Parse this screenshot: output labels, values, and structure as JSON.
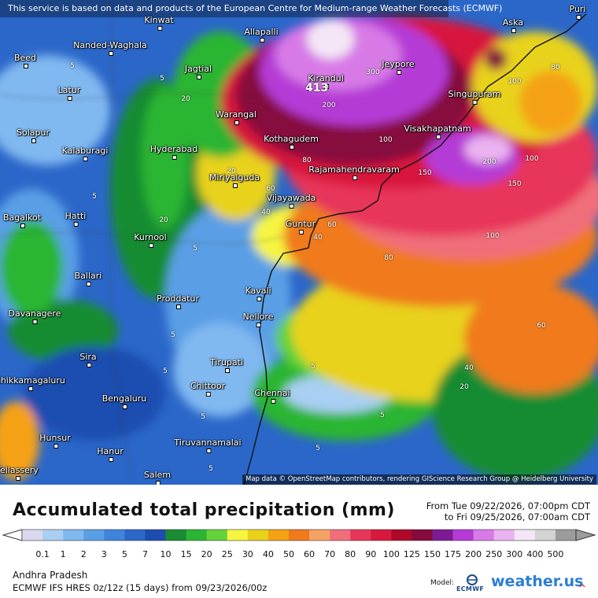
{
  "banner": "This service is based on data and products of the European Centre for Medium-range Weather Forecasts (ECMWF)",
  "map_credit": "Map data © OpenStreetMap contributors, rendering GIScience Research Group @ Heidelberg University",
  "max_value": "413",
  "cities": [
    {
      "name": "Puri"
    },
    {
      "name": "Kinwat"
    },
    {
      "name": "Allapalli"
    },
    {
      "name": "Aska"
    },
    {
      "name": "Nanded-Waghala"
    },
    {
      "name": "Beed"
    },
    {
      "name": "Jagtial"
    },
    {
      "name": "Jeypore"
    },
    {
      "name": "Kirandul"
    },
    {
      "name": "Latur"
    },
    {
      "name": "Singupuram"
    },
    {
      "name": "Warangal"
    },
    {
      "name": "Solapur"
    },
    {
      "name": "Kothagudem"
    },
    {
      "name": "Visakhapatnam"
    },
    {
      "name": "Hyderabad"
    },
    {
      "name": "Kalaburagi"
    },
    {
      "name": "Rajamahendravaram"
    },
    {
      "name": "Miriyalguda"
    },
    {
      "name": "Vijayawada"
    },
    {
      "name": "Bagalkot"
    },
    {
      "name": "Hatti"
    },
    {
      "name": "Guntur"
    },
    {
      "name": "Kurnool"
    },
    {
      "name": "Ballari"
    },
    {
      "name": "Proddatur"
    },
    {
      "name": "Kavali"
    },
    {
      "name": "Davanagere"
    },
    {
      "name": "Nellore"
    },
    {
      "name": "Tirupati"
    },
    {
      "name": "Sira"
    },
    {
      "name": "Chikkamagaluru"
    },
    {
      "name": "Chittoor"
    },
    {
      "name": "Chennai"
    },
    {
      "name": "Bengaluru"
    },
    {
      "name": "Tiruvannamalai"
    },
    {
      "name": "Hunsur"
    },
    {
      "name": "Hanur"
    },
    {
      "name": "Salem"
    },
    {
      "name": "Tellassery"
    }
  ],
  "contour_labels": [
    "5",
    "5",
    "5",
    "5",
    "5",
    "5",
    "5",
    "5",
    "5",
    "5",
    "20",
    "20",
    "20",
    "20",
    "40",
    "40",
    "40",
    "60",
    "60",
    "60",
    "80",
    "80",
    "80",
    "100",
    "100",
    "100",
    "150",
    "150",
    "200",
    "200",
    "300",
    "100",
    "5"
  ],
  "title": "Accumulated total precipitation (mm)",
  "period_from": "From Tue 09/22/2026, 07:00pm CDT",
  "period_to": "to Fri 09/25/2026, 07:00am CDT",
  "legend": {
    "unit": "mm",
    "levels": [
      "0.1",
      "1",
      "2",
      "3",
      "5",
      "7",
      "10",
      "15",
      "20",
      "25",
      "30",
      "40",
      "50",
      "60",
      "70",
      "80",
      "90",
      "100",
      "125",
      "150",
      "175",
      "200",
      "250",
      "300",
      "400",
      "500"
    ],
    "colors": [
      "#d9d9ee",
      "#a9cff3",
      "#80b8f0",
      "#5a9fe6",
      "#3f83db",
      "#2b67c9",
      "#1d4db0",
      "#198c32",
      "#2bb533",
      "#64d23a",
      "#f5f542",
      "#e8d21a",
      "#f5a114",
      "#f07a1c",
      "#f6a264",
      "#f06e7a",
      "#e8365a",
      "#d8183c",
      "#b0082a",
      "#860a3c",
      "#7e1a96",
      "#b53ad6",
      "#d77ae6",
      "#eab2f0",
      "#f4e6f6",
      "#d4d4d4",
      "#9c9c9c"
    ]
  },
  "region": "Andhra Pradesh",
  "model_line": "ECMWF IFS HRES 0z/12z (15 days) from 09/23/2026/00z",
  "model_label": "Model:",
  "ecmwf_logo_text": "ECMWF",
  "brand": "weather.us",
  "icons": [
    "ecmwf-logo-icon",
    "weather-us-logo-icon"
  ]
}
